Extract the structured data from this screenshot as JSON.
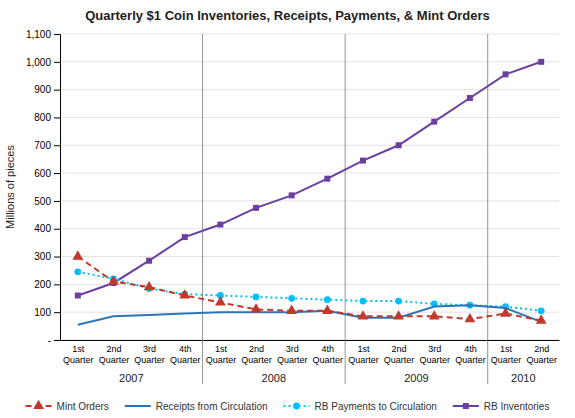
{
  "chart_data": {
    "type": "line",
    "title": "Quarterly $1 Coin Inventories, Receipts, Payments, & Mint Orders",
    "y_label": "Millions of pieces",
    "categories": [
      "1st\nQuarter",
      "2nd\nQuarter",
      "3rd\nQuarter",
      "4th\nQuarter",
      "1st\nQuarter",
      "2nd\nQuarter",
      "3rd\nQuarter",
      "4th\nQuarter",
      "1st\nQuarter",
      "2nd\nQuarter",
      "3rd\nQuarter",
      "4th\nQuarter",
      "1st\nQuarter",
      "2nd\nQuarter"
    ],
    "annotations": [
      "2007",
      "2008",
      "2009",
      "2010"
    ],
    "series": [
      {
        "name": "Mint Orders",
        "color": "#C0392B",
        "marker": "triangle",
        "line_style": "dashed",
        "values": [
          300,
          210,
          190,
          160,
          135,
          110,
          105,
          105,
          85,
          85,
          85,
          75,
          95,
          70
        ]
      },
      {
        "name": "Receipts from Circulation",
        "color": "#2E75B6",
        "marker": "none",
        "line_style": "solid",
        "values": [
          55,
          85,
          90,
          95,
          100,
          100,
          100,
          105,
          80,
          80,
          120,
          125,
          115,
          65
        ]
      },
      {
        "name": "RB Payments to Circulation",
        "color": "#00BFFF",
        "marker": "circle",
        "line_style": "dotted",
        "values": [
          245,
          220,
          185,
          165,
          160,
          155,
          150,
          145,
          140,
          140,
          130,
          125,
          120,
          105
        ]
      },
      {
        "name": "RB Inventories",
        "color": "#6B3FA0",
        "marker": "square",
        "line_style": "solid",
        "values": [
          160,
          205,
          285,
          370,
          415,
          475,
          520,
          580,
          645,
          700,
          785,
          870,
          955,
          1000
        ]
      }
    ],
    "ylim": [
      0,
      1100
    ],
    "yticks": [
      {
        "value": 0,
        "label": "-"
      },
      100,
      200,
      300,
      400,
      500,
      600,
      700,
      800,
      900,
      {
        "value": 1000,
        "label": "1,000"
      },
      {
        "value": 1100,
        "label": "1,100"
      }
    ],
    "grid": true,
    "legend": "bottom"
  }
}
